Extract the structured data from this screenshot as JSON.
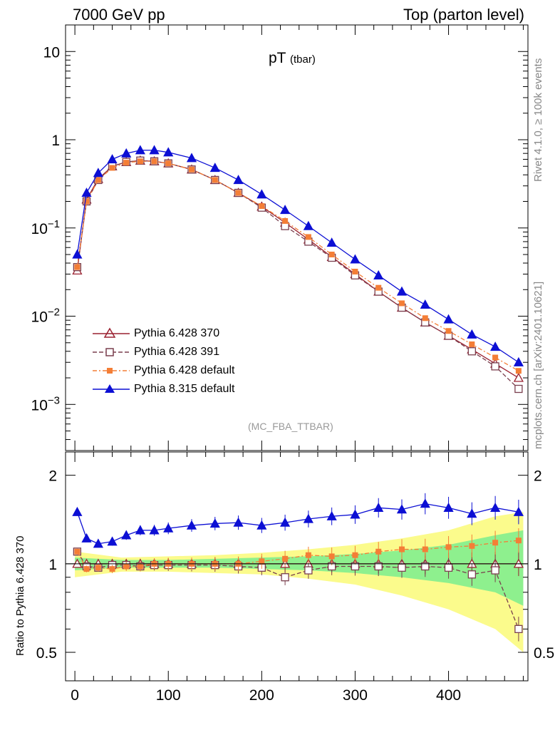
{
  "header": {
    "left": "7000 GeV pp",
    "right": "Top (parton level)"
  },
  "side_labels": {
    "rivet": "Rivet 4.1.0, ≥ 100k events",
    "mcplots": "mcplots.cern.ch [arXiv:2401.10621]"
  },
  "chart_data": {
    "type": "line",
    "title": "pT",
    "title_sub": "(tbar)",
    "analysis_label": "(MC_FBA_TTBAR)",
    "x_ticks": [
      "0",
      "100",
      "200",
      "300",
      "400"
    ],
    "upper": {
      "yscale": "log",
      "ylim": [
        0.0003,
        20
      ],
      "y_ticks": [
        {
          "value": 0.001,
          "base": "10",
          "exp": "−3"
        },
        {
          "value": 0.01,
          "base": "10",
          "exp": "−2"
        },
        {
          "value": 0.1,
          "base": "10",
          "exp": "−1"
        },
        {
          "value": 1,
          "base": "1",
          "exp": ""
        },
        {
          "value": 10,
          "base": "10",
          "exp": ""
        }
      ]
    },
    "ratio": {
      "ylabel": "Ratio to Pythia 6.428 370",
      "yscale": "log",
      "ylim": [
        0.4,
        2.4
      ],
      "y_ticks": [
        "0.5",
        "1",
        "2"
      ]
    },
    "xlim": [
      -10,
      485
    ],
    "series": [
      {
        "name": "Pythia 6.428 370",
        "color": "#9a2130",
        "marker": "triangle-open",
        "dash": "",
        "id": "p370",
        "x": [
          2.5,
          12.5,
          25,
          40,
          55,
          70,
          85,
          100,
          125,
          150,
          175,
          200,
          225,
          250,
          275,
          300,
          325,
          350,
          375,
          400,
          425,
          450,
          475
        ],
        "y": [
          0.033,
          0.21,
          0.36,
          0.5,
          0.56,
          0.58,
          0.57,
          0.54,
          0.46,
          0.35,
          0.25,
          0.175,
          0.115,
          0.074,
          0.047,
          0.03,
          0.019,
          0.0125,
          0.0085,
          0.006,
          0.0042,
          0.0029,
          0.002
        ],
        "ratio": [
          1,
          1,
          1,
          1,
          1,
          1,
          1,
          1,
          1,
          1,
          1,
          1,
          1,
          1,
          1,
          1,
          1,
          1,
          1,
          1,
          1,
          1,
          1
        ]
      },
      {
        "name": "Pythia 6.428 391",
        "color": "#7a3f4e",
        "marker": "square-open",
        "dash": "6,3",
        "id": "p391",
        "x": [
          2.5,
          12.5,
          25,
          40,
          55,
          70,
          85,
          100,
          125,
          150,
          175,
          200,
          225,
          250,
          275,
          300,
          325,
          350,
          375,
          400,
          425,
          450,
          475
        ],
        "y": [
          0.036,
          0.2,
          0.35,
          0.5,
          0.56,
          0.58,
          0.57,
          0.54,
          0.46,
          0.35,
          0.25,
          0.17,
          0.105,
          0.07,
          0.046,
          0.029,
          0.019,
          0.0125,
          0.0085,
          0.006,
          0.004,
          0.0027,
          0.0015
        ],
        "ratio": [
          1.1,
          0.98,
          0.97,
          0.99,
          0.99,
          0.98,
          0.99,
          0.99,
          0.99,
          0.99,
          0.98,
          0.97,
          0.9,
          0.95,
          0.98,
          0.98,
          0.98,
          0.97,
          0.98,
          0.97,
          0.92,
          0.95,
          0.6
        ]
      },
      {
        "name": "Pythia 6.428 default",
        "color": "#f47e36",
        "marker": "square-filled",
        "dash": "6,3,2,3",
        "id": "p6def",
        "x": [
          2.5,
          12.5,
          25,
          40,
          55,
          70,
          85,
          100,
          125,
          150,
          175,
          200,
          225,
          250,
          275,
          300,
          325,
          350,
          375,
          400,
          425,
          450,
          475
        ],
        "y": [
          0.036,
          0.2,
          0.35,
          0.48,
          0.55,
          0.57,
          0.57,
          0.54,
          0.46,
          0.35,
          0.25,
          0.177,
          0.12,
          0.079,
          0.05,
          0.032,
          0.021,
          0.014,
          0.0095,
          0.0068,
          0.0048,
          0.0034,
          0.0024
        ],
        "ratio": [
          1.1,
          0.96,
          0.97,
          0.96,
          0.98,
          0.98,
          1,
          1,
          1,
          1,
          1,
          1.02,
          1.04,
          1.07,
          1.06,
          1.07,
          1.1,
          1.12,
          1.12,
          1.14,
          1.15,
          1.18,
          1.2
        ]
      },
      {
        "name": "Pythia 8.315 default",
        "color": "#0c0fd4",
        "marker": "triangle-filled",
        "dash": "",
        "id": "p8",
        "x": [
          2.5,
          12.5,
          25,
          40,
          55,
          70,
          85,
          100,
          125,
          150,
          175,
          200,
          225,
          250,
          275,
          300,
          325,
          350,
          375,
          400,
          425,
          450,
          475
        ],
        "y": [
          0.05,
          0.25,
          0.42,
          0.6,
          0.7,
          0.76,
          0.76,
          0.72,
          0.62,
          0.48,
          0.35,
          0.24,
          0.16,
          0.105,
          0.068,
          0.044,
          0.029,
          0.019,
          0.0135,
          0.0092,
          0.0062,
          0.0045,
          0.003
        ],
        "ratio": [
          1.5,
          1.22,
          1.17,
          1.19,
          1.25,
          1.3,
          1.3,
          1.32,
          1.35,
          1.37,
          1.38,
          1.35,
          1.38,
          1.42,
          1.45,
          1.47,
          1.55,
          1.53,
          1.6,
          1.55,
          1.48,
          1.55,
          1.5
        ]
      }
    ],
    "ratio_bands": {
      "x": [
        0,
        50,
        100,
        150,
        200,
        250,
        300,
        350,
        400,
        450,
        480
      ],
      "yellow": {
        "color": "#fbfb8c",
        "lo": [
          0.9,
          0.94,
          0.94,
          0.93,
          0.92,
          0.89,
          0.85,
          0.78,
          0.7,
          0.6,
          0.5
        ],
        "hi": [
          1.1,
          1.05,
          1.06,
          1.07,
          1.09,
          1.12,
          1.16,
          1.22,
          1.3,
          1.45,
          1.5
        ]
      },
      "green": {
        "color": "#8ef08e",
        "lo": [
          0.95,
          0.97,
          0.97,
          0.97,
          0.96,
          0.95,
          0.93,
          0.9,
          0.86,
          0.8,
          0.72
        ],
        "hi": [
          1.05,
          1.03,
          1.03,
          1.04,
          1.05,
          1.06,
          1.08,
          1.11,
          1.16,
          1.25,
          1.3
        ]
      }
    }
  }
}
